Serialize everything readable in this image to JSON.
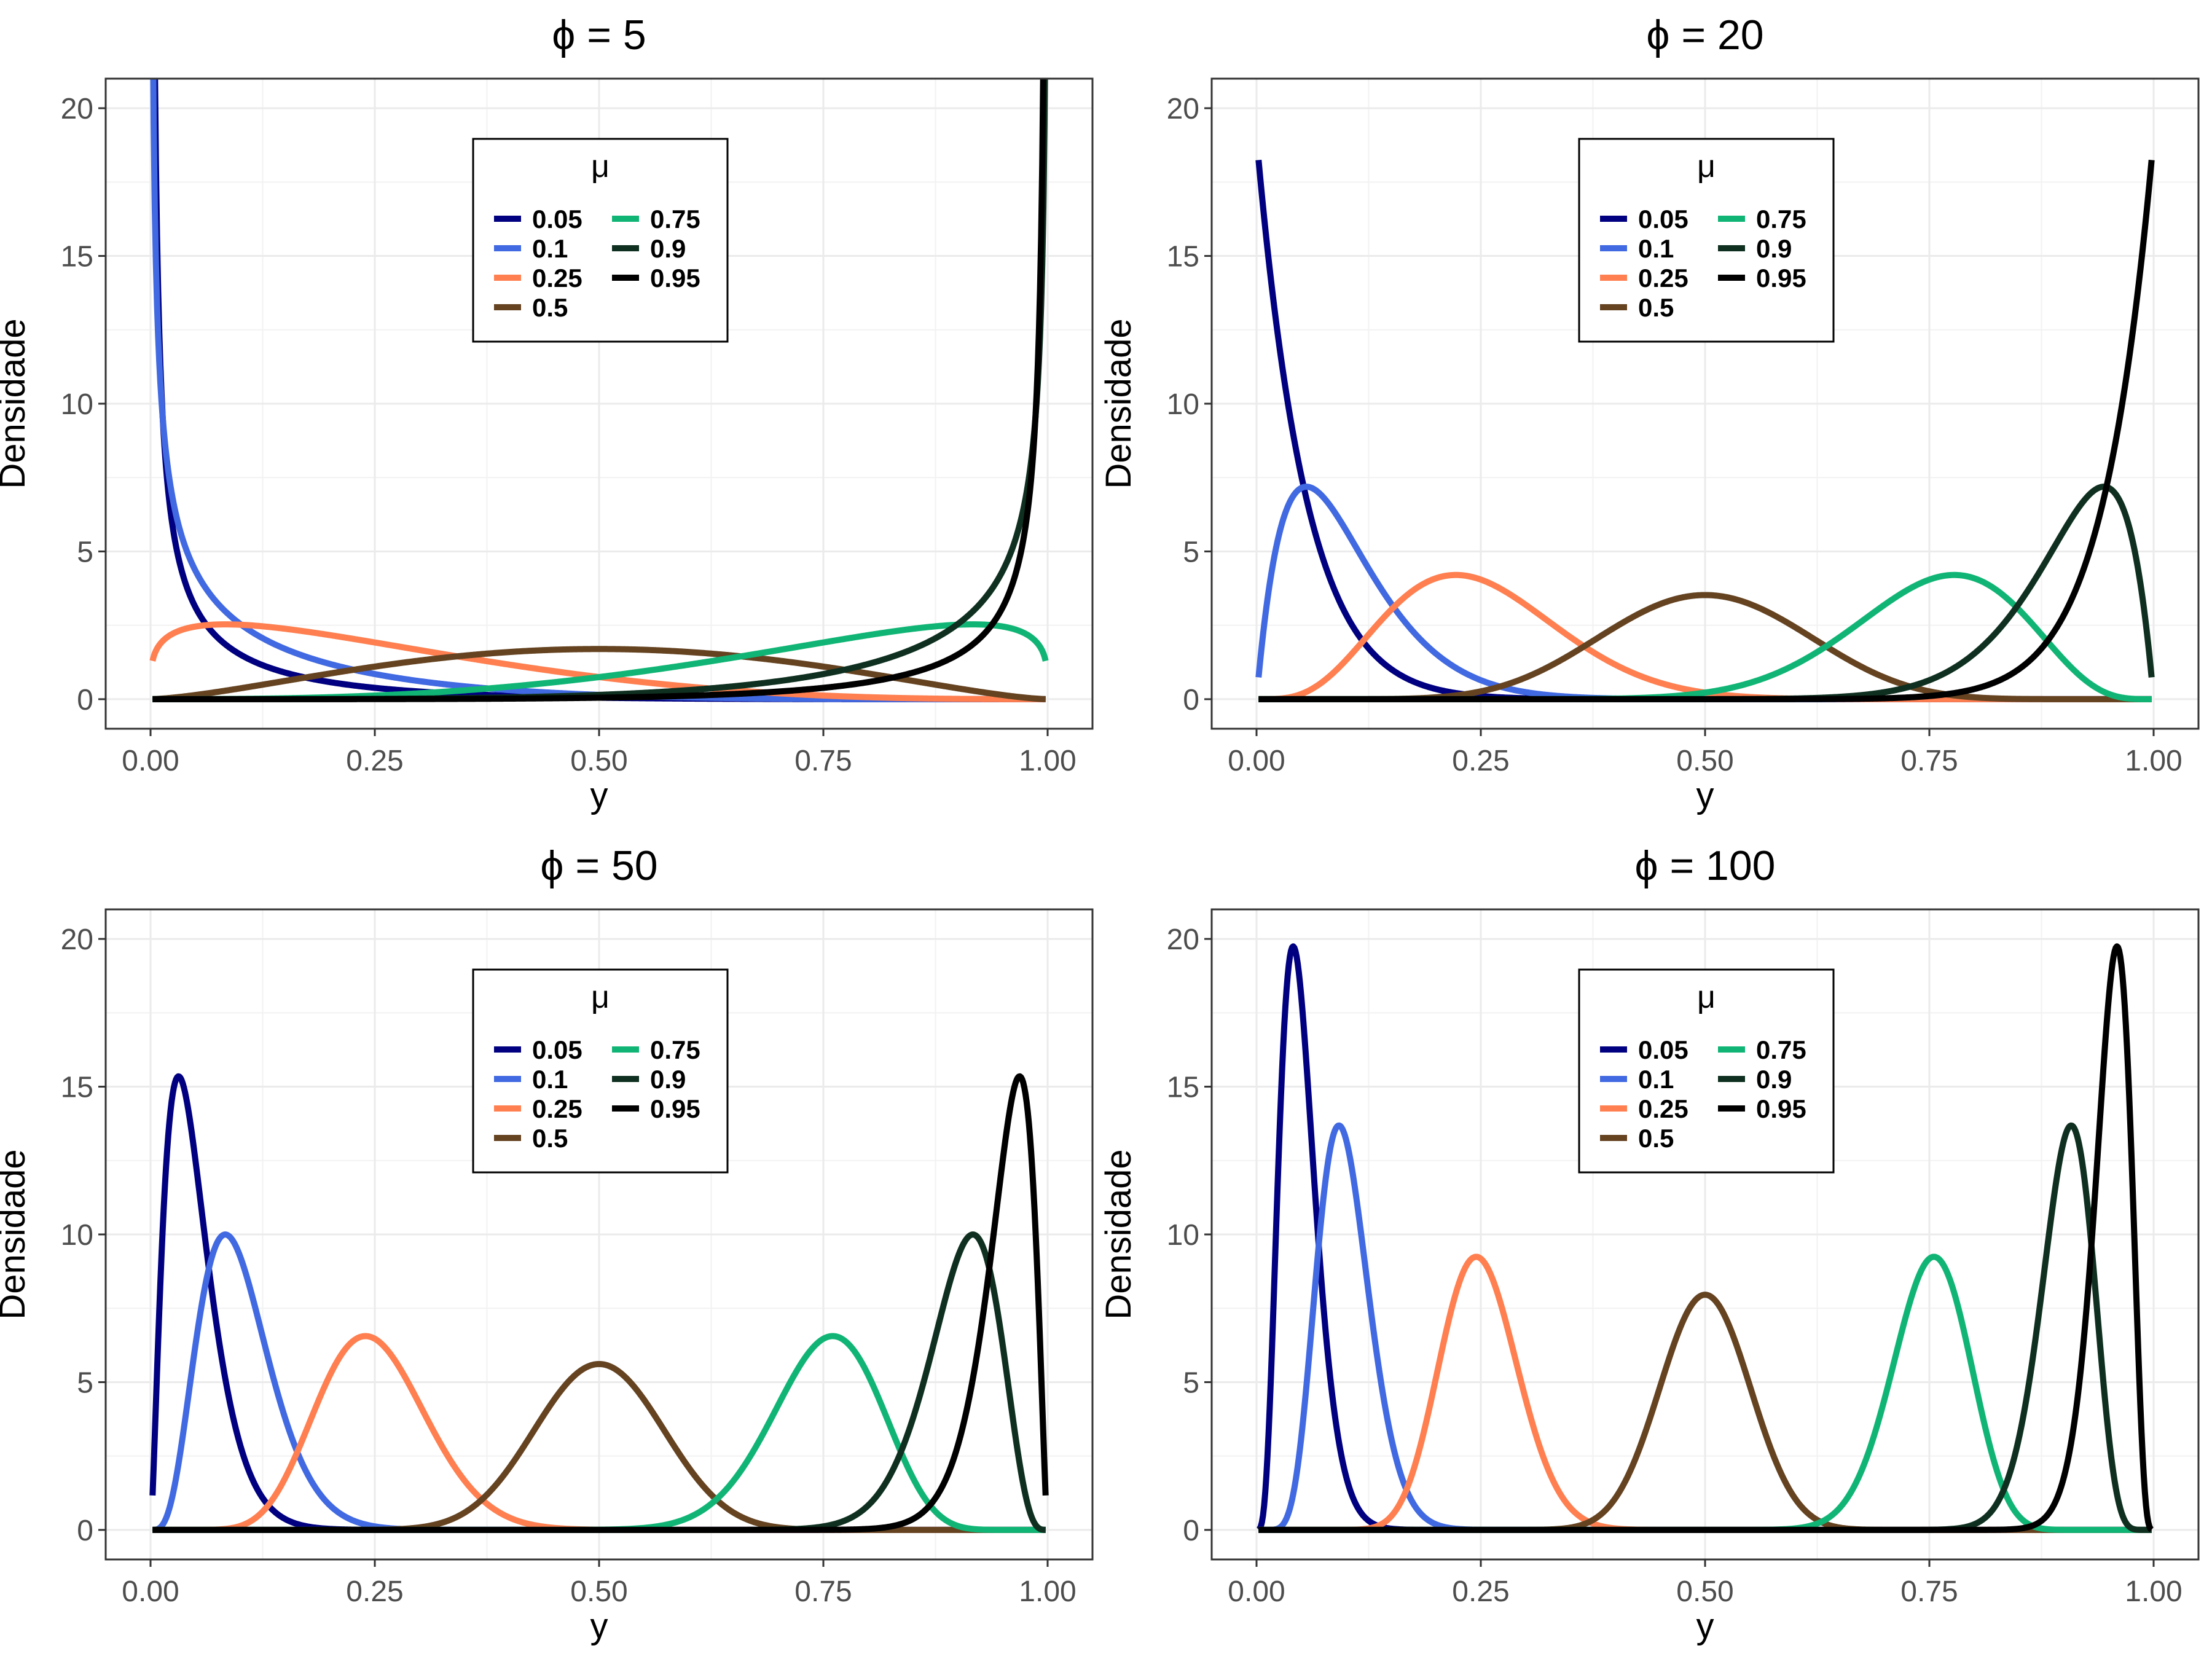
{
  "figure": {
    "ylabel": "Densidade",
    "xlabel": "y",
    "legend_title": "μ",
    "colors": {
      "0.05": "#000080",
      "0.1": "#4169E1",
      "0.25": "#FF7F50",
      "0.5": "#654321",
      "0.75": "#10B575",
      "0.9": "#0F3020",
      "0.95": "#000000"
    }
  },
  "chart_data": [
    {
      "type": "line",
      "title": "ϕ = 5",
      "phi": 5,
      "xlabel": "y",
      "ylabel": "Densidade",
      "xlim": [
        0,
        1
      ],
      "ylim": [
        -1,
        21
      ],
      "xticks": [
        "0.00",
        "0.25",
        "0.50",
        "0.75",
        "1.00"
      ],
      "yticks": [
        "0",
        "5",
        "10",
        "15",
        "20"
      ],
      "grid": true,
      "legend": {
        "title": "μ",
        "placement": "top-center",
        "ncol": 2
      },
      "series": [
        {
          "name": "0.05",
          "mu": 0.05
        },
        {
          "name": "0.1",
          "mu": 0.1
        },
        {
          "name": "0.25",
          "mu": 0.25
        },
        {
          "name": "0.5",
          "mu": 0.5
        },
        {
          "name": "0.75",
          "mu": 0.75
        },
        {
          "name": "0.9",
          "mu": 0.9
        },
        {
          "name": "0.95",
          "mu": 0.95
        }
      ]
    },
    {
      "type": "line",
      "title": "ϕ = 20",
      "phi": 20,
      "xlabel": "y",
      "ylabel": "Densidade",
      "xlim": [
        0,
        1
      ],
      "ylim": [
        -1,
        21
      ],
      "xticks": [
        "0.00",
        "0.25",
        "0.50",
        "0.75",
        "1.00"
      ],
      "yticks": [
        "0",
        "5",
        "10",
        "15",
        "20"
      ],
      "grid": true,
      "legend": {
        "title": "μ",
        "placement": "top-center",
        "ncol": 2
      },
      "series": [
        {
          "name": "0.05",
          "mu": 0.05
        },
        {
          "name": "0.1",
          "mu": 0.1
        },
        {
          "name": "0.25",
          "mu": 0.25
        },
        {
          "name": "0.5",
          "mu": 0.5
        },
        {
          "name": "0.75",
          "mu": 0.75
        },
        {
          "name": "0.9",
          "mu": 0.9
        },
        {
          "name": "0.95",
          "mu": 0.95
        }
      ]
    },
    {
      "type": "line",
      "title": "ϕ = 50",
      "phi": 50,
      "xlabel": "y",
      "ylabel": "Densidade",
      "xlim": [
        0,
        1
      ],
      "ylim": [
        -1,
        21
      ],
      "xticks": [
        "0.00",
        "0.25",
        "0.50",
        "0.75",
        "1.00"
      ],
      "yticks": [
        "0",
        "5",
        "10",
        "15",
        "20"
      ],
      "grid": true,
      "legend": {
        "title": "μ",
        "placement": "top-center",
        "ncol": 2
      },
      "series": [
        {
          "name": "0.05",
          "mu": 0.05
        },
        {
          "name": "0.1",
          "mu": 0.1
        },
        {
          "name": "0.25",
          "mu": 0.25
        },
        {
          "name": "0.5",
          "mu": 0.5
        },
        {
          "name": "0.75",
          "mu": 0.75
        },
        {
          "name": "0.9",
          "mu": 0.9
        },
        {
          "name": "0.95",
          "mu": 0.95
        }
      ]
    },
    {
      "type": "line",
      "title": "ϕ = 100",
      "phi": 100,
      "xlabel": "y",
      "ylabel": "Densidade",
      "xlim": [
        0,
        1
      ],
      "ylim": [
        -1,
        21
      ],
      "xticks": [
        "0.00",
        "0.25",
        "0.50",
        "0.75",
        "1.00"
      ],
      "yticks": [
        "0",
        "5",
        "10",
        "15",
        "20"
      ],
      "grid": true,
      "legend": {
        "title": "μ",
        "placement": "top-center",
        "ncol": 2
      },
      "series": [
        {
          "name": "0.05",
          "mu": 0.05
        },
        {
          "name": "0.1",
          "mu": 0.1
        },
        {
          "name": "0.25",
          "mu": 0.25
        },
        {
          "name": "0.5",
          "mu": 0.5
        },
        {
          "name": "0.75",
          "mu": 0.75
        },
        {
          "name": "0.9",
          "mu": 0.9
        },
        {
          "name": "0.95",
          "mu": 0.95
        }
      ]
    }
  ]
}
